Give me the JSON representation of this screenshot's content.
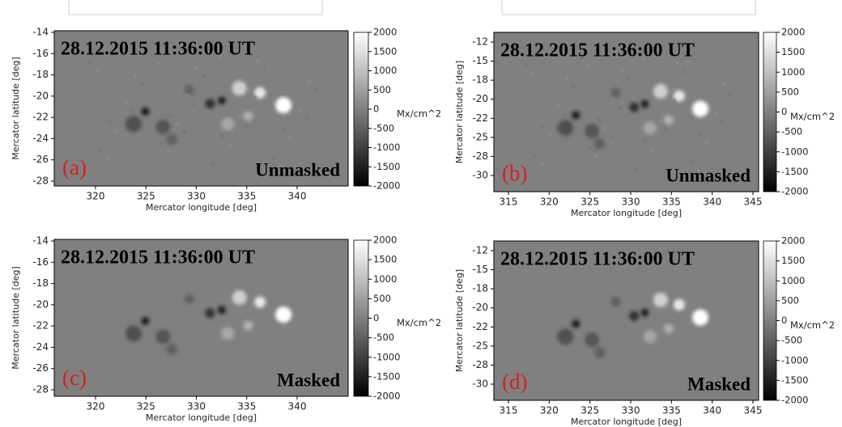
{
  "panels": [
    {
      "date": "28.12.2015  11:36:00 UT",
      "label": "(a)",
      "status": "Unmasked",
      "xlabel": "Mercator longitude [deg]",
      "ylabel": "Mercator latitude [deg]",
      "xticks": [
        320,
        325,
        330,
        335,
        340
      ],
      "yticks": [
        -14,
        -16,
        -18,
        -20,
        -22,
        -24,
        -26,
        -28
      ],
      "colorbar": {
        "label": "Mx/cm^2",
        "ticks": [
          2000,
          1500,
          1000,
          500,
          0,
          -500,
          -1000,
          -1500,
          -2000
        ]
      }
    },
    {
      "date": "28.12.2015  11:36:00 UT",
      "label": "(b)",
      "status": "Unmasked",
      "xlabel": "Mercator longitude [deg]",
      "ylabel": "Mercator latitude [deg]",
      "xticks": [
        315,
        320,
        325,
        330,
        335,
        340,
        345
      ],
      "yticks": [
        -12,
        -15,
        -18,
        -20,
        -22,
        -25,
        -28,
        -30
      ],
      "colorbar": {
        "label": "Mx/cm^2",
        "ticks": [
          2000,
          1500,
          1000,
          500,
          0,
          -500,
          -1000,
          -1500,
          -2000
        ]
      }
    },
    {
      "date": "28.12.2015  11:36:00 UT",
      "label": "(c)",
      "status": "Masked",
      "xlabel": "Mercator longitude [deg]",
      "ylabel": "Mercator latitude [deg]",
      "xticks": [
        320,
        325,
        330,
        335,
        340
      ],
      "yticks": [
        -14,
        -16,
        -18,
        -20,
        -22,
        -24,
        -26,
        -28
      ],
      "colorbar": {
        "label": "Mx/cm^2",
        "ticks": [
          2000,
          1500,
          1000,
          500,
          0,
          -500,
          -1000,
          -1500,
          -2000
        ]
      }
    },
    {
      "date": "28.12.2015  11:36:00 UT",
      "label": "(d)",
      "status": "Masked",
      "xlabel": "Mercator longitude [deg]",
      "ylabel": "Mercator latitude [deg]",
      "xticks": [
        315,
        320,
        325,
        330,
        335,
        340,
        345
      ],
      "yticks": [
        -12,
        -15,
        -18,
        -20,
        -22,
        -25,
        -28,
        -30
      ],
      "colorbar": {
        "label": "Mx/cm^2",
        "ticks": [
          2000,
          1500,
          1000,
          500,
          0,
          -500,
          -1000,
          -1500,
          -2000
        ]
      }
    }
  ]
}
